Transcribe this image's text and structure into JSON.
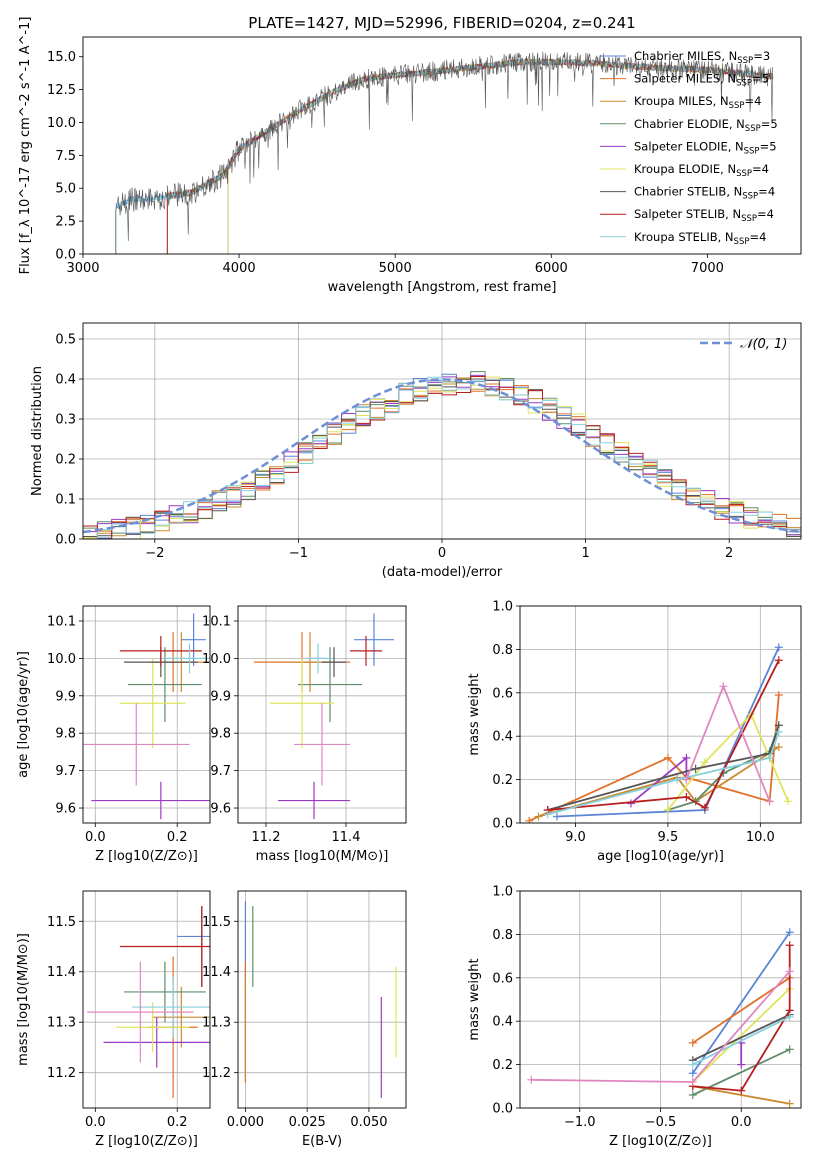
{
  "title": "PLATE=1427, MJD=52996, FIBERID=0204, z=0.241",
  "models": [
    {
      "name": "Chabrier MILES",
      "nssp": "3",
      "color": "#5b84d6"
    },
    {
      "name": "Salpeter MILES",
      "nssp": "5",
      "color": "#e2702a"
    },
    {
      "name": "Kroupa MILES",
      "nssp": "4",
      "color": "#c98a2e"
    },
    {
      "name": "Chabrier ELODIE",
      "nssp": "5",
      "color": "#5e8c6a"
    },
    {
      "name": "Salpeter ELODIE",
      "nssp": "5",
      "color": "#9b3ac2"
    },
    {
      "name": "Kroupa ELODIE",
      "nssp": "4",
      "color": "#dfe45c"
    },
    {
      "name": "Chabrier STELIB",
      "nssp": "4",
      "color": "#555555"
    },
    {
      "name": "Salpeter STELIB",
      "nssp": "4",
      "color": "#b81e1e"
    },
    {
      "name": "Kroupa STELIB",
      "nssp": "4",
      "color": "#88d0dc"
    }
  ],
  "chart_data": [
    {
      "id": "spectrum",
      "type": "line",
      "xlabel": "wavelength [Angstrom, rest frame]",
      "ylabel": "Flux [f_λ 10^-17 erg cm^-2 s^-1 A^-1]",
      "xlim": [
        3000,
        7600
      ],
      "ylim": [
        0,
        16.5
      ],
      "xticks": [
        "3000",
        "4000",
        "5000",
        "6000",
        "7000"
      ],
      "yticks": [
        "0.0",
        "2.5",
        "5.0",
        "7.5",
        "10.0",
        "12.5",
        "15.0"
      ],
      "legend": "right",
      "continuum": [
        [
          3210,
          3.6
        ],
        [
          3300,
          4.1
        ],
        [
          3500,
          4.3
        ],
        [
          3700,
          4.7
        ],
        [
          3900,
          6.0
        ],
        [
          4000,
          8.0
        ],
        [
          4200,
          9.5
        ],
        [
          4400,
          11.0
        ],
        [
          4600,
          12.3
        ],
        [
          4800,
          13.3
        ],
        [
          5000,
          13.6
        ],
        [
          5200,
          13.8
        ],
        [
          5500,
          14.2
        ],
        [
          5800,
          14.6
        ],
        [
          6000,
          14.6
        ],
        [
          6300,
          14.5
        ],
        [
          6600,
          14.2
        ],
        [
          7000,
          14.0
        ],
        [
          7400,
          13.5
        ]
      ],
      "starts": [
        3210,
        3540,
        3540,
        3540,
        3930,
        3930,
        3210,
        3540,
        3210
      ]
    },
    {
      "id": "residuals",
      "type": "line",
      "xlabel": "(data-model)/error",
      "ylabel": "Normed distribution",
      "xlim": [
        -2.5,
        2.5
      ],
      "ylim": [
        0,
        0.54
      ],
      "xticks": [
        "−2",
        "−1",
        "0",
        "1",
        "2"
      ],
      "yticks": [
        "0.0",
        "0.1",
        "0.2",
        "0.3",
        "0.4",
        "0.5"
      ],
      "grid": true,
      "gaussian_label": "𝒩(0, 1)",
      "legend": "top-right"
    },
    {
      "id": "age_vs_Z",
      "type": "scatter",
      "xlabel": "Z [log10(Z/Z⊙)]",
      "ylabel": "age [log10(age/yr)]",
      "xlim": [
        -0.03,
        0.28
      ],
      "ylim": [
        9.56,
        10.14
      ],
      "xticks": [
        "0.0",
        "0.2"
      ],
      "yticks": [
        "9.6",
        "9.7",
        "9.8",
        "9.9",
        "10.0",
        "10.1"
      ],
      "grid": true,
      "points": [
        {
          "x": 0.24,
          "y": 10.05,
          "xerr": 0.03,
          "yerr": 0.07
        },
        {
          "x": 0.19,
          "y": 9.99,
          "xerr": 0.06,
          "yerr": 0.08
        },
        {
          "x": 0.21,
          "y": 9.99,
          "xerr": 0.07,
          "yerr": 0.08
        },
        {
          "x": 0.17,
          "y": 9.93,
          "xerr": 0.09,
          "yerr": 0.1
        },
        {
          "x": 0.16,
          "y": 9.62,
          "xerr": 0.17,
          "yerr": 0.05
        },
        {
          "x": 0.14,
          "y": 9.88,
          "xerr": 0.08,
          "yerr": 0.12
        },
        {
          "x": 0.16,
          "y": 9.99,
          "xerr": 0.09,
          "yerr": 0.04
        },
        {
          "x": 0.16,
          "y": 10.02,
          "xerr": 0.1,
          "yerr": 0.04
        },
        {
          "x": 0.23,
          "y": 10.0,
          "xerr": 0.06,
          "yerr": 0.04
        },
        {
          "x": 0.1,
          "y": 9.77,
          "xerr": 0.13,
          "yerr": 0.11
        }
      ]
    },
    {
      "id": "age_vs_mass",
      "type": "scatter",
      "xlabel": "mass [log10(M/M⊙)]",
      "ylabel": "",
      "xlim": [
        11.13,
        11.55
      ],
      "ylim": [
        9.56,
        10.14
      ],
      "xticks": [
        "11.2",
        "11.4"
      ],
      "yticks": [
        "9.6",
        "9.7",
        "9.8",
        "9.9",
        "10.0",
        "10.1"
      ],
      "grid": true,
      "points": [
        {
          "x": 11.47,
          "y": 10.05,
          "xerr": 0.05,
          "yerr": 0.07
        },
        {
          "x": 11.29,
          "y": 9.99,
          "xerr": 0.12,
          "yerr": 0.08
        },
        {
          "x": 11.31,
          "y": 9.99,
          "xerr": 0.06,
          "yerr": 0.08
        },
        {
          "x": 11.36,
          "y": 9.93,
          "xerr": 0.08,
          "yerr": 0.1
        },
        {
          "x": 11.32,
          "y": 9.62,
          "xerr": 0.09,
          "yerr": 0.05
        },
        {
          "x": 11.29,
          "y": 9.88,
          "xerr": 0.08,
          "yerr": 0.12
        },
        {
          "x": 11.37,
          "y": 9.99,
          "xerr": 0.03,
          "yerr": 0.04
        },
        {
          "x": 11.45,
          "y": 10.02,
          "xerr": 0.04,
          "yerr": 0.04
        },
        {
          "x": 11.33,
          "y": 10.0,
          "xerr": 0.03,
          "yerr": 0.04
        },
        {
          "x": 11.34,
          "y": 9.77,
          "xerr": 0.07,
          "yerr": 0.11
        }
      ]
    },
    {
      "id": "weight_vs_age",
      "type": "line",
      "xlabel": "age [log10(age/yr)]",
      "ylabel": "mass weight",
      "xlim": [
        8.7,
        10.22
      ],
      "ylim": [
        0,
        1
      ],
      "xticks": [
        "9.0",
        "9.5",
        "10.0"
      ],
      "yticks": [
        "0.0",
        "0.2",
        "0.4",
        "0.6",
        "0.8",
        "1.0"
      ],
      "grid": true,
      "series": [
        {
          "x": [
            8.9,
            9.7,
            10.1
          ],
          "y": [
            0.03,
            0.06,
            0.81
          ]
        },
        {
          "x": [
            8.75,
            9.5,
            9.6,
            10.05,
            10.1
          ],
          "y": [
            0.01,
            0.3,
            0.21,
            0.1,
            0.59
          ]
        },
        {
          "x": [
            8.8,
            9.55,
            9.65,
            10.1
          ],
          "y": [
            0.03,
            0.21,
            0.1,
            0.35
          ]
        },
        {
          "x": [
            9.5,
            9.65,
            9.8,
            10.05,
            10.1
          ],
          "y": [
            0.06,
            0.1,
            0.23,
            0.33,
            0.45
          ]
        },
        {
          "x": [
            9.3,
            9.6,
            9.6
          ],
          "y": [
            0.09,
            0.3,
            0.21
          ]
        },
        {
          "x": [
            9.5,
            9.7,
            9.95,
            10.15
          ],
          "y": [
            0.06,
            0.28,
            0.5,
            0.1
          ]
        },
        {
          "x": [
            8.85,
            9.65,
            10.05,
            10.1
          ],
          "y": [
            0.06,
            0.25,
            0.32,
            0.45
          ]
        },
        {
          "x": [
            8.85,
            9.6,
            9.7,
            10.1
          ],
          "y": [
            0.06,
            0.12,
            0.07,
            0.75
          ]
        },
        {
          "x": [
            8.85,
            9.55,
            10.05,
            10.1
          ],
          "y": [
            0.04,
            0.2,
            0.3,
            0.42
          ]
        },
        {
          "x": [
            9.6,
            9.8,
            10.05
          ],
          "y": [
            0.2,
            0.63,
            0.1
          ]
        }
      ]
    },
    {
      "id": "mass_vs_Z",
      "type": "scatter",
      "xlabel": "Z [log10(Z/Z⊙)]",
      "ylabel": "mass [log10(M/M⊙)]",
      "xlim": [
        -0.03,
        0.28
      ],
      "ylim": [
        11.13,
        11.56
      ],
      "xticks": [
        "0.0",
        "0.2"
      ],
      "yticks": [
        "11.2",
        "11.3",
        "11.4",
        "11.5"
      ],
      "grid": true,
      "points": [
        {
          "x": 0.24,
          "y": 11.47,
          "xerr": 0.04,
          "yerr": 0.0
        },
        {
          "x": 0.19,
          "y": 11.29,
          "xerr": 0.06,
          "yerr": 0.14
        },
        {
          "x": 0.21,
          "y": 11.31,
          "xerr": 0.07,
          "yerr": 0.06
        },
        {
          "x": 0.17,
          "y": 11.36,
          "xerr": 0.1,
          "yerr": 0.06
        },
        {
          "x": 0.15,
          "y": 11.26,
          "xerr": 0.13,
          "yerr": 0.05
        },
        {
          "x": 0.14,
          "y": 11.29,
          "xerr": 0.09,
          "yerr": 0.05
        },
        {
          "x": 0.26,
          "y": 11.45,
          "xerr": 0.0,
          "yerr": 0.08
        },
        {
          "x": 0.26,
          "y": 11.45,
          "xerr": 0.2,
          "yerr": 0.08
        },
        {
          "x": 0.19,
          "y": 11.33,
          "xerr": 0.1,
          "yerr": 0.06
        },
        {
          "x": 0.11,
          "y": 11.32,
          "xerr": 0.13,
          "yerr": 0.1
        }
      ]
    },
    {
      "id": "mass_vs_EBV",
      "type": "scatter",
      "xlabel": "E(B-V)",
      "ylabel": "",
      "xlim": [
        -0.003,
        0.065
      ],
      "ylim": [
        11.13,
        11.56
      ],
      "xticks": [
        "0.000",
        "0.025",
        "0.050"
      ],
      "yticks": [
        "11.2",
        "11.3",
        "11.4",
        "11.5"
      ],
      "grid": true,
      "points": [
        {
          "x": 0.0,
          "y": 11.38,
          "xerr": 0,
          "yerr": 0.16
        },
        {
          "x": 0.0,
          "y": 11.3,
          "xerr": 0,
          "yerr": 0.12
        },
        {
          "x": 0.0,
          "y": 11.29,
          "xerr": 0,
          "yerr": 0.1
        },
        {
          "x": 0.003,
          "y": 11.45,
          "xerr": 0,
          "yerr": 0.08
        },
        {
          "x": 0.055,
          "y": 11.25,
          "xerr": 0,
          "yerr": 0.1
        },
        {
          "x": 0.061,
          "y": 11.32,
          "xerr": 0,
          "yerr": 0.09
        }
      ]
    },
    {
      "id": "weight_vs_Z",
      "type": "line",
      "xlabel": "Z [log10(Z/Z⊙)]",
      "ylabel": "mass weight",
      "xlim": [
        -1.37,
        0.37
      ],
      "ylim": [
        0,
        1
      ],
      "xticks": [
        "−1.0",
        "−0.5",
        "0.0"
      ],
      "yticks": [
        "0.0",
        "0.2",
        "0.4",
        "0.6",
        "0.8",
        "1.0"
      ],
      "grid": true,
      "series": [
        {
          "x": [
            -0.3,
            0.3
          ],
          "y": [
            0.16,
            0.81
          ]
        },
        {
          "x": [
            -0.3,
            0.3
          ],
          "y": [
            0.3,
            0.6
          ]
        },
        {
          "x": [
            -0.3,
            0.3
          ],
          "y": [
            0.1,
            0.02
          ]
        },
        {
          "x": [
            -0.3,
            0.3
          ],
          "y": [
            0.06,
            0.27
          ]
        },
        {
          "x": [
            0.0,
            0.0
          ],
          "y": [
            0.2,
            0.3
          ]
        },
        {
          "x": [
            -0.3,
            0.3
          ],
          "y": [
            0.12,
            0.55
          ]
        },
        {
          "x": [
            -0.3,
            0.3
          ],
          "y": [
            0.22,
            0.43
          ]
        },
        {
          "x": [
            -0.3,
            0.0,
            0.3,
            0.3
          ],
          "y": [
            0.1,
            0.08,
            0.45,
            0.75
          ]
        },
        {
          "x": [
            -0.3,
            0.3
          ],
          "y": [
            0.2,
            0.42
          ]
        },
        {
          "x": [
            -1.3,
            -0.3,
            0.3
          ],
          "y": [
            0.13,
            0.12,
            0.63
          ]
        }
      ]
    }
  ]
}
